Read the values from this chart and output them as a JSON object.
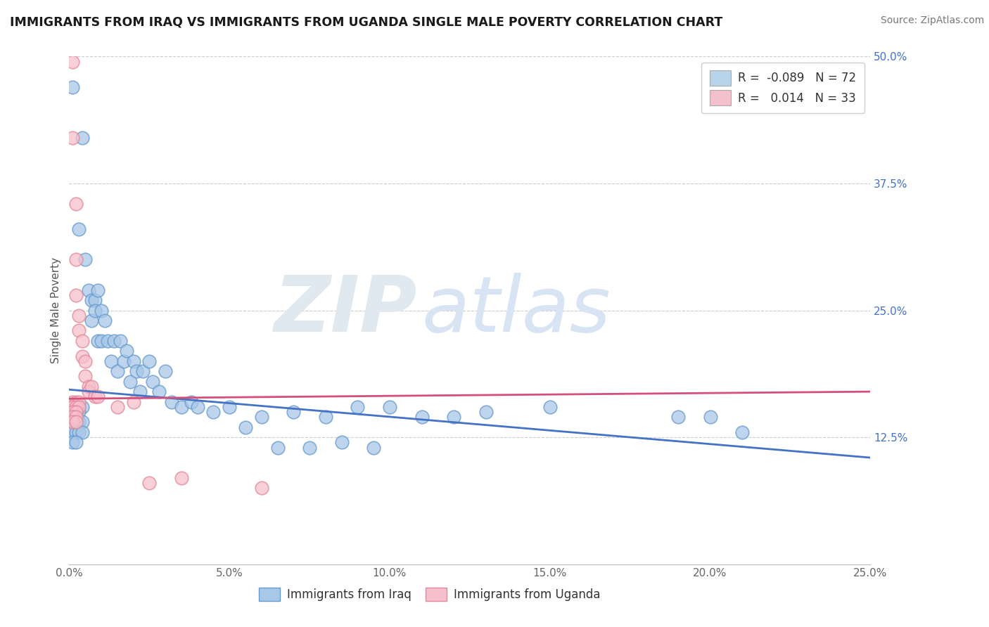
{
  "title": "IMMIGRANTS FROM IRAQ VS IMMIGRANTS FROM UGANDA SINGLE MALE POVERTY CORRELATION CHART",
  "source": "Source: ZipAtlas.com",
  "ylabel": "Single Male Poverty",
  "xlim": [
    0.0,
    0.25
  ],
  "ylim": [
    0.0,
    0.5
  ],
  "xticks": [
    0.0,
    0.05,
    0.1,
    0.15,
    0.2,
    0.25
  ],
  "xtick_labels": [
    "0.0%",
    "5.0%",
    "10.0%",
    "15.0%",
    "20.0%",
    "25.0%"
  ],
  "yticks": [
    0.0,
    0.125,
    0.25,
    0.375,
    0.5
  ],
  "ytick_labels": [
    "",
    "12.5%",
    "25.0%",
    "37.5%",
    "50.0%"
  ],
  "iraq_color": "#a8c8e8",
  "iraq_edge_color": "#6699cc",
  "uganda_color": "#f8c0cc",
  "uganda_edge_color": "#e08898",
  "background_color": "#ffffff",
  "grid_color": "#cccccc",
  "iraq_trend_color": "#4472c4",
  "uganda_trend_color": "#d4507a",
  "ytick_color": "#4472c4",
  "iraq_scatter": [
    [
      0.001,
      0.47
    ],
    [
      0.004,
      0.42
    ],
    [
      0.003,
      0.33
    ],
    [
      0.005,
      0.3
    ],
    [
      0.006,
      0.27
    ],
    [
      0.007,
      0.26
    ],
    [
      0.007,
      0.24
    ],
    [
      0.008,
      0.26
    ],
    [
      0.008,
      0.25
    ],
    [
      0.009,
      0.27
    ],
    [
      0.009,
      0.22
    ],
    [
      0.01,
      0.25
    ],
    [
      0.01,
      0.22
    ],
    [
      0.011,
      0.24
    ],
    [
      0.012,
      0.22
    ],
    [
      0.013,
      0.2
    ],
    [
      0.014,
      0.22
    ],
    [
      0.015,
      0.19
    ],
    [
      0.016,
      0.22
    ],
    [
      0.017,
      0.2
    ],
    [
      0.018,
      0.21
    ],
    [
      0.019,
      0.18
    ],
    [
      0.02,
      0.2
    ],
    [
      0.021,
      0.19
    ],
    [
      0.022,
      0.17
    ],
    [
      0.023,
      0.19
    ],
    [
      0.025,
      0.2
    ],
    [
      0.026,
      0.18
    ],
    [
      0.028,
      0.17
    ],
    [
      0.03,
      0.19
    ],
    [
      0.032,
      0.16
    ],
    [
      0.002,
      0.155
    ],
    [
      0.003,
      0.155
    ],
    [
      0.004,
      0.155
    ],
    [
      0.001,
      0.155
    ],
    [
      0.001,
      0.15
    ],
    [
      0.002,
      0.15
    ],
    [
      0.003,
      0.15
    ],
    [
      0.001,
      0.145
    ],
    [
      0.002,
      0.145
    ],
    [
      0.001,
      0.14
    ],
    [
      0.002,
      0.14
    ],
    [
      0.003,
      0.14
    ],
    [
      0.004,
      0.14
    ],
    [
      0.001,
      0.13
    ],
    [
      0.002,
      0.13
    ],
    [
      0.003,
      0.13
    ],
    [
      0.004,
      0.13
    ],
    [
      0.001,
      0.12
    ],
    [
      0.002,
      0.12
    ],
    [
      0.035,
      0.155
    ],
    [
      0.038,
      0.16
    ],
    [
      0.04,
      0.155
    ],
    [
      0.045,
      0.15
    ],
    [
      0.05,
      0.155
    ],
    [
      0.06,
      0.145
    ],
    [
      0.07,
      0.15
    ],
    [
      0.08,
      0.145
    ],
    [
      0.09,
      0.155
    ],
    [
      0.1,
      0.155
    ],
    [
      0.11,
      0.145
    ],
    [
      0.12,
      0.145
    ],
    [
      0.13,
      0.15
    ],
    [
      0.055,
      0.135
    ],
    [
      0.065,
      0.115
    ],
    [
      0.075,
      0.115
    ],
    [
      0.085,
      0.12
    ],
    [
      0.095,
      0.115
    ],
    [
      0.15,
      0.155
    ],
    [
      0.19,
      0.145
    ],
    [
      0.2,
      0.145
    ],
    [
      0.21,
      0.13
    ]
  ],
  "uganda_scatter": [
    [
      0.001,
      0.495
    ],
    [
      0.001,
      0.42
    ],
    [
      0.002,
      0.355
    ],
    [
      0.002,
      0.3
    ],
    [
      0.002,
      0.265
    ],
    [
      0.003,
      0.245
    ],
    [
      0.003,
      0.23
    ],
    [
      0.004,
      0.22
    ],
    [
      0.004,
      0.205
    ],
    [
      0.005,
      0.2
    ],
    [
      0.005,
      0.185
    ],
    [
      0.006,
      0.175
    ],
    [
      0.006,
      0.17
    ],
    [
      0.007,
      0.175
    ],
    [
      0.008,
      0.165
    ],
    [
      0.009,
      0.165
    ],
    [
      0.001,
      0.16
    ],
    [
      0.002,
      0.16
    ],
    [
      0.003,
      0.16
    ],
    [
      0.001,
      0.155
    ],
    [
      0.002,
      0.155
    ],
    [
      0.003,
      0.155
    ],
    [
      0.001,
      0.15
    ],
    [
      0.002,
      0.15
    ],
    [
      0.001,
      0.145
    ],
    [
      0.002,
      0.145
    ],
    [
      0.001,
      0.14
    ],
    [
      0.002,
      0.14
    ],
    [
      0.015,
      0.155
    ],
    [
      0.02,
      0.16
    ],
    [
      0.025,
      0.08
    ],
    [
      0.035,
      0.085
    ],
    [
      0.06,
      0.075
    ]
  ],
  "iraq_trend": {
    "x_start": 0.0,
    "x_end": 0.25,
    "y_start": 0.172,
    "y_end": 0.105
  },
  "uganda_trend": {
    "x_start": 0.0,
    "x_end": 0.25,
    "y_start": 0.163,
    "y_end": 0.17
  },
  "watermark_zip_color": "#e0e8f0",
  "watermark_atlas_color": "#d8e4f4",
  "legend_iraq_color": "#b8d4ea",
  "legend_uganda_color": "#f4c0cc",
  "legend_r_color": "#4472c4",
  "legend_n_color": "#333333"
}
